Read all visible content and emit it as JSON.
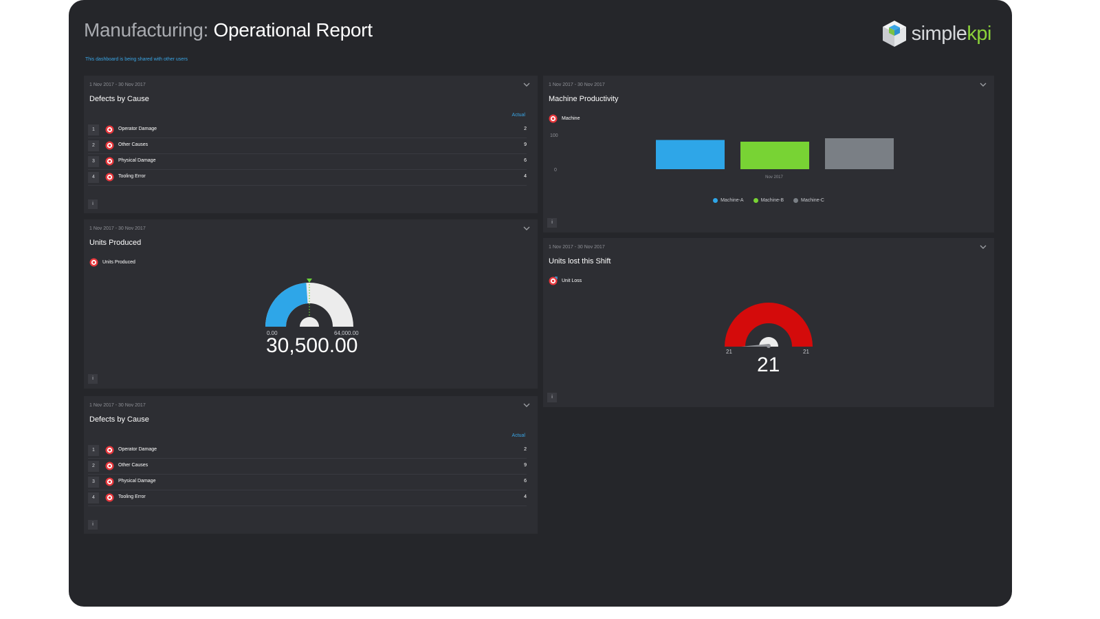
{
  "header": {
    "title_prefix": "Manufacturing:",
    "title_main": "Operational Report",
    "shared_notice": "This dashboard is being shared with other users",
    "logo_text_a": "simple",
    "logo_text_b": "kpi"
  },
  "colors": {
    "accent": "#3aa6e6",
    "brand_green": "#8bd23a",
    "kpi_red": "#e8383d"
  },
  "panels": {
    "defects1": {
      "date": "1 Nov 2017 - 30 Nov 2017",
      "title": "Defects by Cause",
      "column": "Actual",
      "rows": [
        {
          "num": "1",
          "label": "Operator Damage",
          "value": "2"
        },
        {
          "num": "2",
          "label": "Other Causes",
          "value": "9"
        },
        {
          "num": "3",
          "label": "Physical Damage",
          "value": "6"
        },
        {
          "num": "4",
          "label": "Tooling Error",
          "value": "4"
        }
      ],
      "info": "i"
    },
    "machine": {
      "date": "1 Nov 2017 - 30 Nov 2017",
      "title": "Machine Productivity",
      "kpi_label": "Machine",
      "y_top": "100",
      "y_bottom": "0",
      "x_label": "Nov 2017",
      "legend": [
        {
          "name": "Machine-A",
          "color": "#2ea6e8"
        },
        {
          "name": "Machine-B",
          "color": "#78d334"
        },
        {
          "name": "Machine-C",
          "color": "#7a7f85"
        }
      ],
      "info": "i"
    },
    "units": {
      "date": "1 Nov 2017 - 30 Nov 2017",
      "title": "Units Produced",
      "kpi_label": "Units Produced",
      "min": "0.00",
      "max": "64,000.00",
      "value": "30,500.00",
      "fill_fraction": 0.477,
      "info": "i"
    },
    "lost": {
      "date": "1 Nov 2017 - 30 Nov 2017",
      "title": "Units lost this Shift",
      "kpi_label": "Unit Loss",
      "min": "21",
      "max": "21",
      "value": "21",
      "info": "i"
    },
    "defects2": {
      "date": "1 Nov 2017 - 30 Nov 2017",
      "title": "Defects by Cause",
      "column": "Actual",
      "rows": [
        {
          "num": "1",
          "label": "Operator Damage",
          "value": "2"
        },
        {
          "num": "2",
          "label": "Other Causes",
          "value": "9"
        },
        {
          "num": "3",
          "label": "Physical Damage",
          "value": "6"
        },
        {
          "num": "4",
          "label": "Tooling Error",
          "value": "4"
        }
      ],
      "info": "i"
    }
  },
  "chart_data": {
    "type": "bar",
    "categories": [
      "Nov 2017"
    ],
    "series": [
      {
        "name": "Machine-A",
        "values": [
          85
        ]
      },
      {
        "name": "Machine-B",
        "values": [
          80
        ]
      },
      {
        "name": "Machine-C",
        "values": [
          90
        ]
      }
    ],
    "ylim": [
      0,
      100
    ],
    "legend": "bottom"
  }
}
